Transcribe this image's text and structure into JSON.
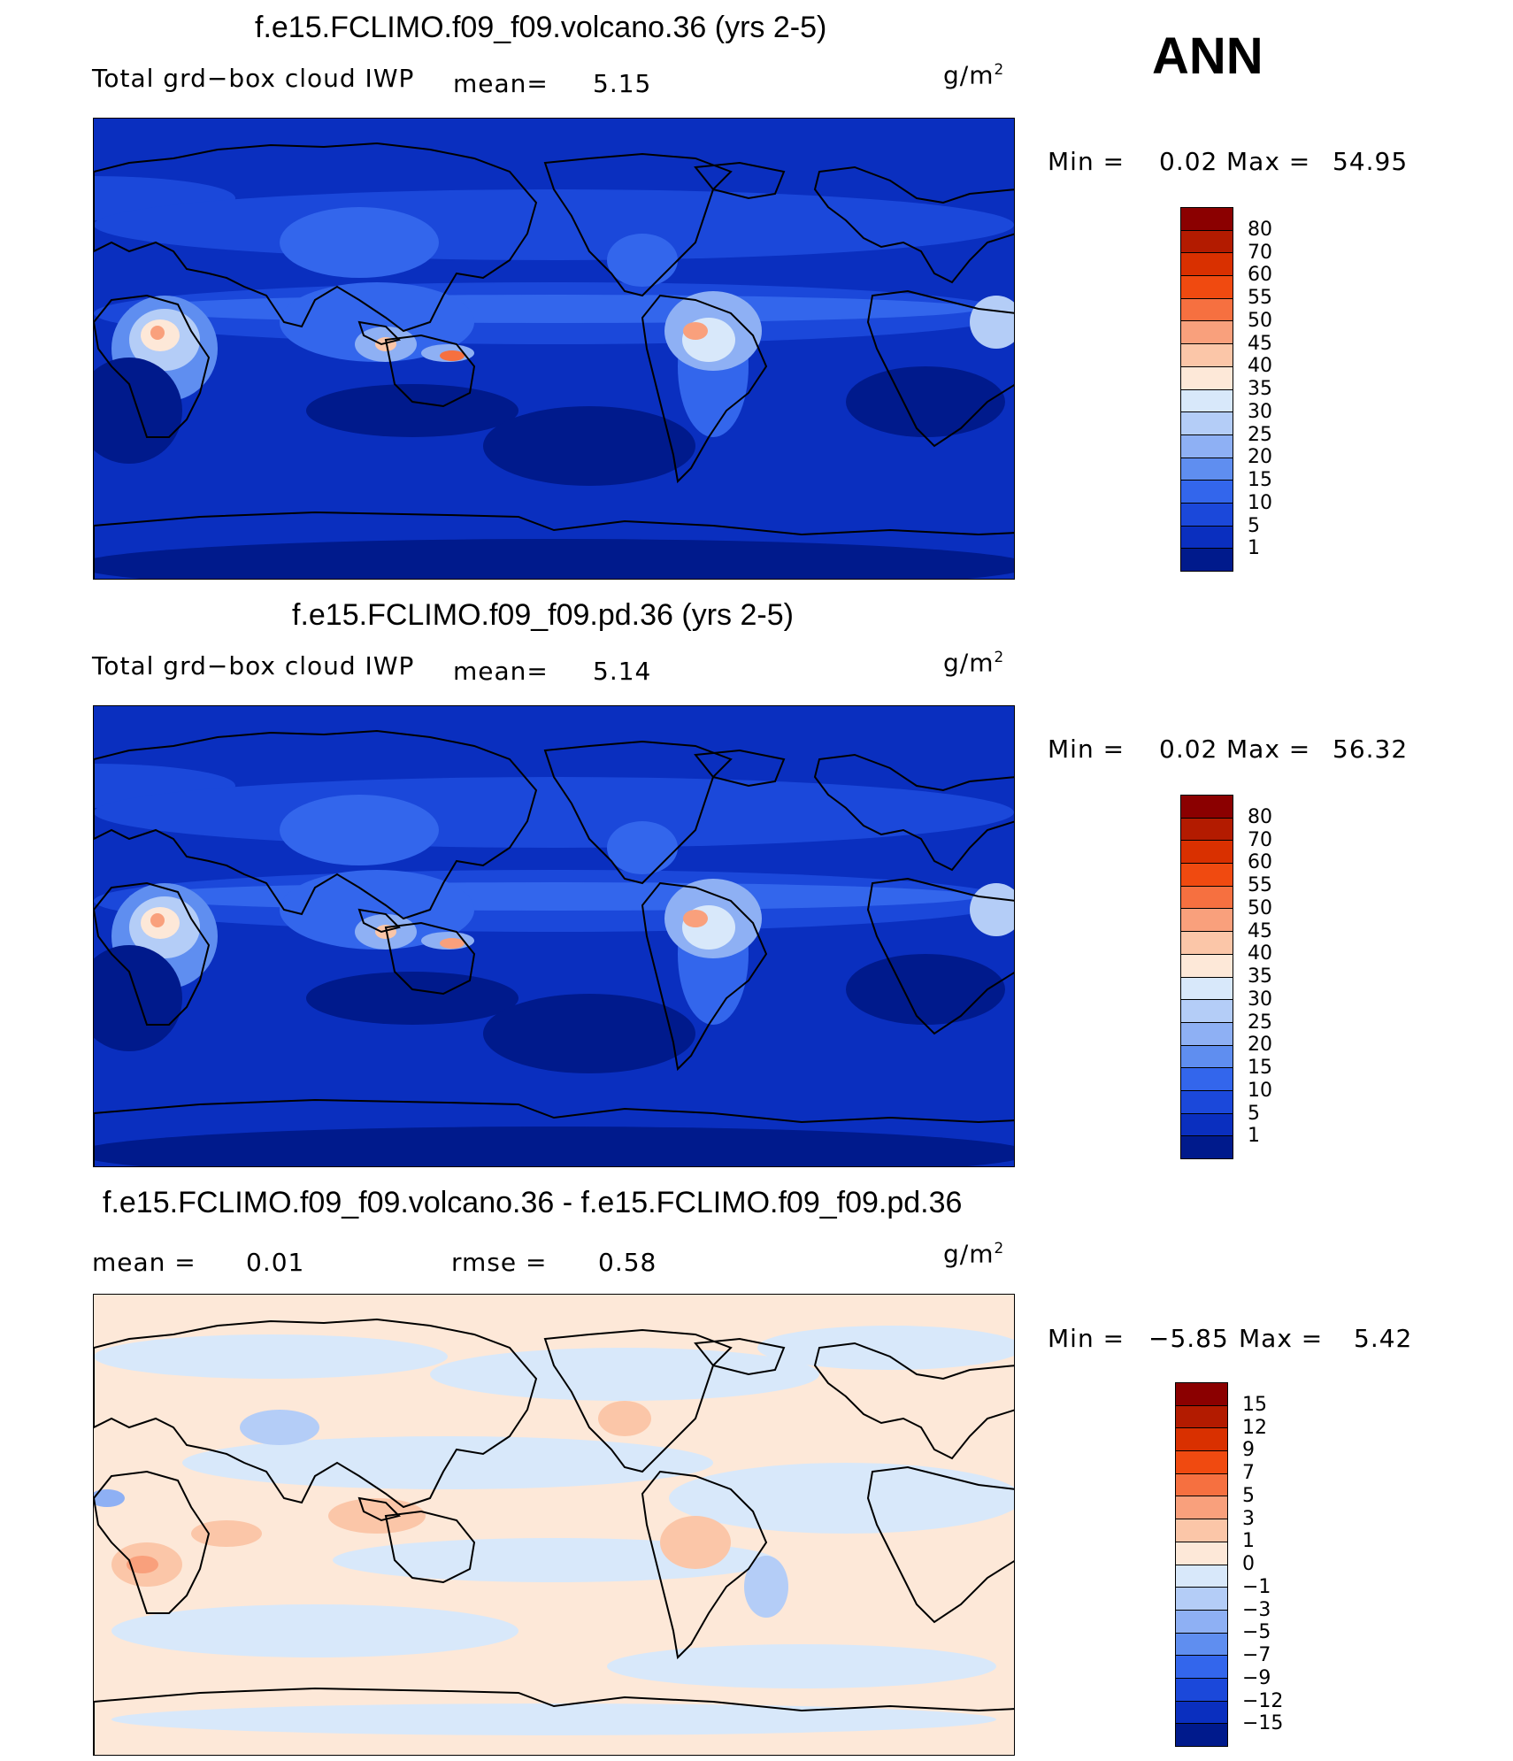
{
  "season": "ANN",
  "units_base": "g/m",
  "units_exp": "2",
  "panels": [
    {
      "title": "f.e15.FCLIMO.f09_f09.volcano.36 (yrs 2-5)",
      "left_label": "Total grd−box cloud IWP",
      "stat1_label": "mean=",
      "stat1_value": "5.15",
      "min_label": "Min =",
      "min_value": "0.02",
      "max_label": "Max =",
      "max_value": "54.95"
    },
    {
      "title": "f.e15.FCLIMO.f09_f09.pd.36 (yrs 2-5)",
      "left_label": "Total grd−box cloud IWP",
      "stat1_label": "mean=",
      "stat1_value": "5.14",
      "min_label": "Min =",
      "min_value": "0.02",
      "max_label": "Max =",
      "max_value": "56.32"
    },
    {
      "title": "f.e15.FCLIMO.f09_f09.volcano.36 - f.e15.FCLIMO.f09_f09.pd.36",
      "stat1_label": "mean =",
      "stat1_value": "0.01",
      "stat2_label": "rmse =",
      "stat2_value": "0.58",
      "min_label": "Min =",
      "min_value": "−5.85",
      "max_label": "Max =",
      "max_value": "5.42"
    }
  ],
  "chart_data": [
    {
      "type": "heatmap",
      "title": "f.e15.FCLIMO.f09_f09.volcano.36 (yrs 2-5)",
      "variable": "Total grd−box cloud IWP",
      "units": "g/m2",
      "mean": 5.15,
      "min": 0.02,
      "max": 54.95,
      "colorbar_levels": [
        "80",
        "70",
        "60",
        "55",
        "50",
        "45",
        "40",
        "35",
        "30",
        "25",
        "20",
        "15",
        "10",
        "5",
        "1"
      ],
      "colorbar_colors": [
        "#8b0000",
        "#b31b00",
        "#d93000",
        "#f04a10",
        "#f67040",
        "#f9a07c",
        "#fbc6a8",
        "#fde8d8",
        "#d8e8fa",
        "#b4cdf7",
        "#8eb0f4",
        "#5f8ef0",
        "#3366ec",
        "#1b48da",
        "#0a2fbf",
        "#001a8c"
      ]
    },
    {
      "type": "heatmap",
      "title": "f.e15.FCLIMO.f09_f09.pd.36 (yrs 2-5)",
      "variable": "Total grd−box cloud IWP",
      "units": "g/m2",
      "mean": 5.14,
      "min": 0.02,
      "max": 56.32,
      "colorbar_levels": [
        "80",
        "70",
        "60",
        "55",
        "50",
        "45",
        "40",
        "35",
        "30",
        "25",
        "20",
        "15",
        "10",
        "5",
        "1"
      ],
      "colorbar_colors": [
        "#8b0000",
        "#b31b00",
        "#d93000",
        "#f04a10",
        "#f67040",
        "#f9a07c",
        "#fbc6a8",
        "#fde8d8",
        "#d8e8fa",
        "#b4cdf7",
        "#8eb0f4",
        "#5f8ef0",
        "#3366ec",
        "#1b48da",
        "#0a2fbf",
        "#001a8c"
      ]
    },
    {
      "type": "heatmap",
      "title": "f.e15.FCLIMO.f09_f09.volcano.36 - f.e15.FCLIMO.f09_f09.pd.36",
      "units": "g/m2",
      "mean": 0.01,
      "rmse": 0.58,
      "min": -5.85,
      "max": 5.42,
      "colorbar_levels": [
        "15",
        "12",
        "9",
        "7",
        "5",
        "3",
        "1",
        "0",
        "−1",
        "−3",
        "−5",
        "−7",
        "−9",
        "−12",
        "−15"
      ],
      "colorbar_colors": [
        "#8b0000",
        "#b31b00",
        "#d93000",
        "#f04a10",
        "#f67040",
        "#f9a07c",
        "#fbc6a8",
        "#fde8d8",
        "#d8e8fa",
        "#b4cdf7",
        "#8eb0f4",
        "#5f8ef0",
        "#3366ec",
        "#1b48da",
        "#0a2fbf",
        "#001a8c"
      ]
    }
  ]
}
